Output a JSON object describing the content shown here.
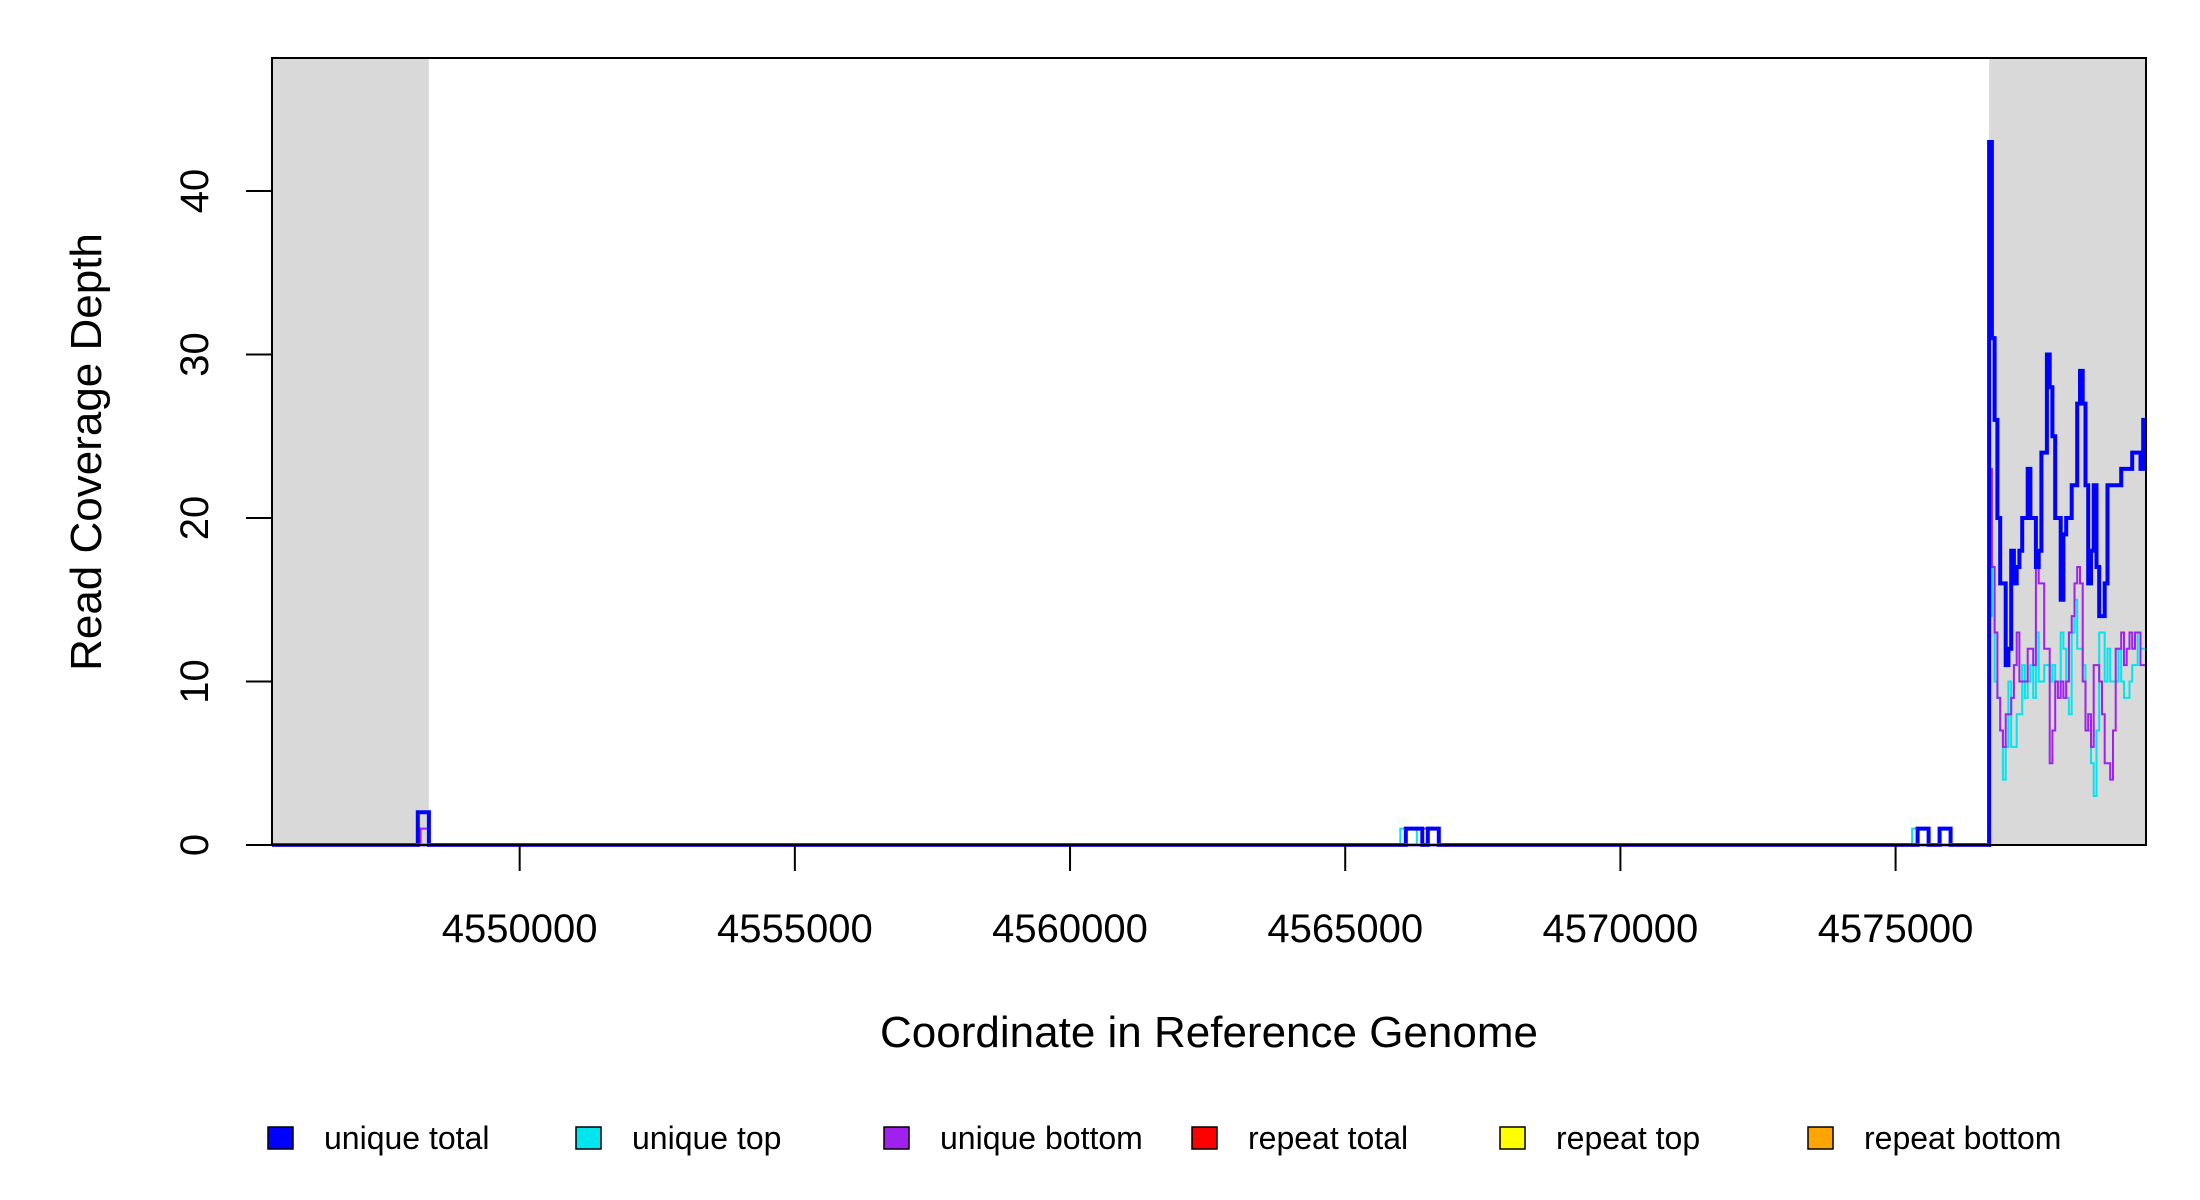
{
  "chart_data": {
    "type": "line",
    "step": true,
    "xlabel": "Coordinate in Reference Genome",
    "ylabel": "Read Coverage Depth",
    "xlim": [
      4545500,
      4579550
    ],
    "ylim": [
      0,
      48
    ],
    "x_ticks": [
      4550000,
      4555000,
      4560000,
      4565000,
      4570000,
      4575000
    ],
    "x_tick_labels": [
      "4550000",
      "4555000",
      "4560000",
      "4565000",
      "4570000",
      "4575000"
    ],
    "y_ticks": [
      0,
      10,
      20,
      30,
      40
    ],
    "y_tick_labels": [
      "0",
      "10",
      "20",
      "30",
      "40"
    ],
    "shaded_regions": [
      {
        "x0": 4545500,
        "x1": 4548350,
        "color": "#d9d9d9"
      },
      {
        "x0": 4576700,
        "x1": 4579550,
        "color": "#d9d9d9"
      }
    ],
    "legend_position": "bottom",
    "series": [
      {
        "name": "unique total",
        "color": "#0000ff",
        "x": [
          4545500,
          4548150,
          4548350,
          4566100,
          4566400,
          4566500,
          4566700,
          4575400,
          4575600,
          4575800,
          4576000,
          4576700,
          4576750,
          4576800,
          4576850,
          4576900,
          4577000,
          4577050,
          4577100,
          4577150,
          4577200,
          4577250,
          4577300,
          4577400,
          4577450,
          4577550,
          4577600,
          4577650,
          4577750,
          4577800,
          4577850,
          4577900,
          4578000,
          4578050,
          4578100,
          4578200,
          4578300,
          4578350,
          4578400,
          4578450,
          4578500,
          4578550,
          4578600,
          4578650,
          4578700,
          4578800,
          4578850,
          4578900,
          4579000,
          4579050,
          4579100,
          4579150,
          4579250,
          4579300,
          4579350,
          4579450,
          4579500,
          4579550
        ],
        "y": [
          0,
          2,
          0,
          1,
          0,
          1,
          0,
          1,
          0,
          1,
          0,
          43,
          31,
          26,
          20,
          16,
          11,
          12,
          18,
          16,
          17,
          18,
          20,
          23,
          20,
          17,
          18,
          24,
          30,
          28,
          25,
          20,
          15,
          19,
          20,
          22,
          27,
          29,
          27,
          22,
          16,
          18,
          22,
          17,
          14,
          16,
          22,
          22,
          22,
          22,
          23,
          23,
          23,
          24,
          24,
          23,
          26,
          26
        ]
      },
      {
        "name": "unique top",
        "color": "#00e5ee",
        "x": [
          4545500,
          4548150,
          4548350,
          4566000,
          4566300,
          4566500,
          4575300,
          4575600,
          4576700,
          4576750,
          4576800,
          4576850,
          4576900,
          4576950,
          4577000,
          4577050,
          4577100,
          4577200,
          4577300,
          4577350,
          4577400,
          4577450,
          4577500,
          4577550,
          4577600,
          4577700,
          4577800,
          4577850,
          4577900,
          4578000,
          4578050,
          4578100,
          4578150,
          4578200,
          4578250,
          4578300,
          4578400,
          4578450,
          4578550,
          4578600,
          4578650,
          4578700,
          4578800,
          4578850,
          4578900,
          4579000,
          4579050,
          4579100,
          4579150,
          4579250,
          4579300,
          4579350,
          4579400,
          4579450,
          4579550
        ],
        "y": [
          0,
          1,
          0,
          1,
          0,
          0,
          1,
          0,
          14,
          17,
          10,
          9,
          7,
          4,
          6,
          10,
          6,
          8,
          11,
          9,
          10,
          11,
          9,
          13,
          10,
          11,
          10,
          11,
          10,
          13,
          12,
          9,
          8,
          13,
          15,
          12,
          11,
          7,
          5,
          3,
          7,
          13,
          10,
          12,
          10,
          10,
          12,
          10,
          9,
          10,
          11,
          11,
          13,
          12,
          12
        ]
      },
      {
        "name": "unique bottom",
        "color": "#a020f0",
        "x": [
          4545500,
          4548200,
          4548350,
          4566400,
          4566700,
          4575800,
          4576000,
          4576700,
          4576750,
          4576800,
          4576850,
          4576900,
          4576950,
          4577000,
          4577100,
          4577150,
          4577200,
          4577250,
          4577300,
          4577400,
          4577500,
          4577550,
          4577600,
          4577700,
          4577800,
          4577850,
          4577900,
          4577950,
          4578000,
          4578050,
          4578100,
          4578150,
          4578200,
          4578250,
          4578300,
          4578350,
          4578400,
          4578450,
          4578500,
          4578550,
          4578600,
          4578700,
          4578750,
          4578800,
          4578900,
          4578950,
          4579000,
          4579100,
          4579150,
          4579200,
          4579250,
          4579300,
          4579350,
          4579400,
          4579450,
          4579500,
          4579550
        ],
        "y": [
          0,
          1,
          0,
          1,
          0,
          1,
          0,
          23,
          17,
          13,
          9,
          7,
          6,
          8,
          9,
          11,
          13,
          10,
          10,
          12,
          11,
          18,
          16,
          12,
          5,
          7,
          10,
          9,
          10,
          9,
          10,
          13,
          14,
          16,
          17,
          16,
          10,
          7,
          8,
          6,
          11,
          10,
          8,
          5,
          4,
          7,
          12,
          13,
          11,
          12,
          13,
          12,
          13,
          13,
          11,
          11,
          11
        ]
      },
      {
        "name": "repeat total",
        "color": "#ff0000",
        "x": [
          4576700,
          4579550
        ],
        "y": [
          0,
          0
        ]
      },
      {
        "name": "repeat top",
        "color": "#ffff00",
        "x": [
          4576700,
          4579550
        ],
        "y": [
          0,
          0
        ]
      },
      {
        "name": "repeat bottom",
        "color": "#ffa500",
        "x": [
          4576700,
          4579550
        ],
        "y": [
          0,
          0
        ]
      }
    ]
  }
}
